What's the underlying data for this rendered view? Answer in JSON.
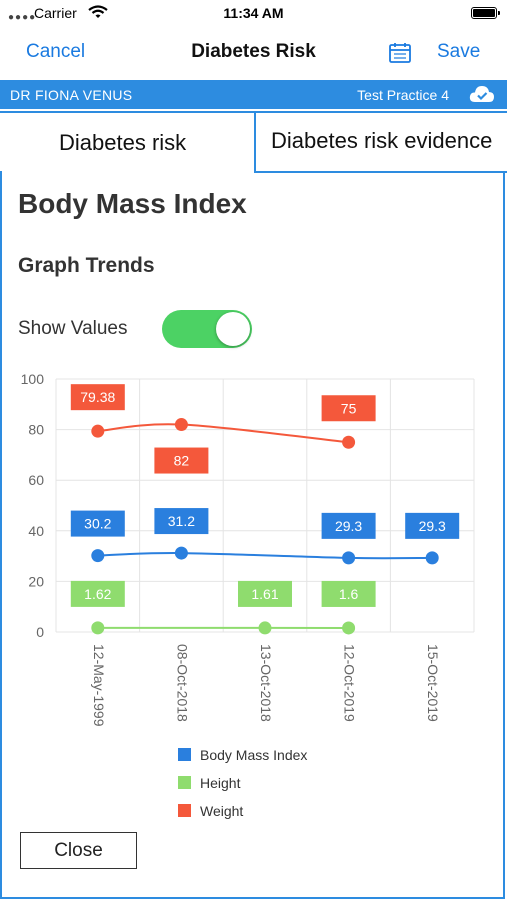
{
  "status_bar": {
    "carrier": "Carrier",
    "time": "11:34 AM"
  },
  "nav": {
    "cancel_label": "Cancel",
    "title": "Diabetes Risk",
    "save_label": "Save",
    "calendar_icon": "calendar-icon"
  },
  "info_bar": {
    "doctor": "DR FIONA VENUS",
    "practice": "Test Practice 4",
    "sync_icon": "cloud-check-icon"
  },
  "tabs": [
    {
      "label": "Diabetes risk",
      "active": true
    },
    {
      "label": "Diabetes risk evidence",
      "active": false
    }
  ],
  "content": {
    "title": "Body Mass Index",
    "subtitle": "Graph Trends",
    "show_values_label": "Show Values",
    "show_values_on": true
  },
  "chart_data": {
    "type": "line",
    "categories": [
      "12-May-1999",
      "08-Oct-2018",
      "13-Oct-2018",
      "12-Oct-2019",
      "15-Oct-2019"
    ],
    "ylim": [
      0,
      100
    ],
    "yticks": [
      0,
      20,
      40,
      60,
      80,
      100
    ],
    "grid": true,
    "legend_position": "bottom",
    "series": [
      {
        "name": "Body Mass Index",
        "color": "#2a7fde",
        "values": [
          30.2,
          31.2,
          null,
          29.3,
          29.3
        ]
      },
      {
        "name": "Height",
        "color": "#8fdc6e",
        "values": [
          1.62,
          null,
          1.61,
          1.6,
          null
        ]
      },
      {
        "name": "Weight",
        "color": "#f4583b",
        "values": [
          79.38,
          82,
          null,
          75,
          null
        ]
      }
    ]
  },
  "close_label": "Close"
}
